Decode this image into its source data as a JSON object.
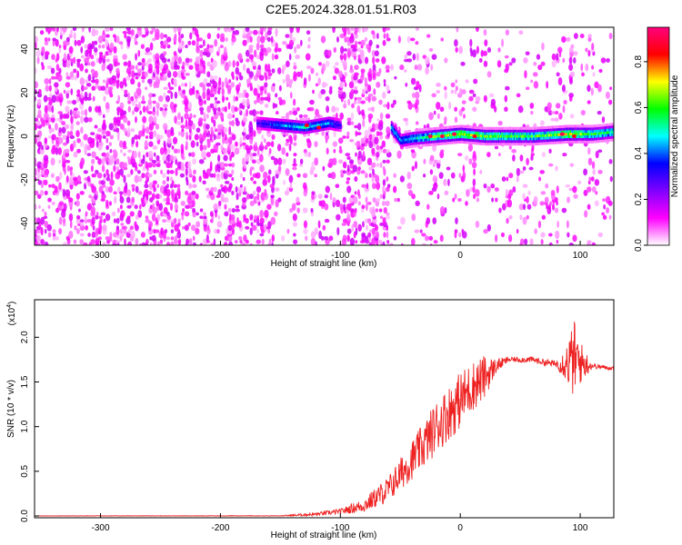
{
  "title": "C2E5.2024.328.01.51.R03",
  "chart_data": [
    {
      "type": "heatmap",
      "xlabel": "Height of straight line (km)",
      "ylabel": "Frequency (Hz)",
      "xlim": [
        -355,
        128
      ],
      "ylim": [
        -50,
        50
      ],
      "x_ticks": [
        -300,
        -200,
        -100,
        0,
        100
      ],
      "y_ticks": [
        -40,
        -20,
        0,
        20,
        40
      ],
      "colorbar": {
        "label": "Normalized spectral amplitude",
        "range": [
          0,
          0.95
        ],
        "ticks": [
          0.0,
          0.2,
          0.4,
          0.6,
          0.8
        ],
        "colormap": [
          "#ffffff",
          "#ff00ff",
          "#7f00ff",
          "#0000ff",
          "#00ffff",
          "#00ff00",
          "#ffff00",
          "#ff0000",
          "#ff007f"
        ]
      },
      "regions": [
        {
          "x": [
            -355,
            -155
          ],
          "y": [
            -50,
            50
          ],
          "kind": "noise",
          "level": 0.12
        },
        {
          "x": [
            -155,
            -100
          ],
          "y": [
            -50,
            50
          ],
          "kind": "noise",
          "level": 0.06
        },
        {
          "x": [
            -100,
            -58
          ],
          "y": [
            -50,
            50
          ],
          "kind": "noise",
          "level": 0.12
        },
        {
          "x": [
            -58,
            128
          ],
          "y": [
            -50,
            50
          ],
          "kind": "noise",
          "level": 0.04
        }
      ],
      "ridge": [
        {
          "x": -170,
          "f": 6,
          "amp": 0.3
        },
        {
          "x": -150,
          "f": 5,
          "amp": 0.45
        },
        {
          "x": -130,
          "f": 4,
          "amp": 0.5
        },
        {
          "x": -110,
          "f": 6,
          "amp": 0.45
        },
        {
          "x": -100,
          "f": 5,
          "amp": 0.3
        },
        {
          "x": -58,
          "f": 4,
          "amp": 0.5
        },
        {
          "x": -50,
          "f": -2,
          "amp": 0.45
        },
        {
          "x": -40,
          "f": -1,
          "amp": 0.5
        },
        {
          "x": -20,
          "f": 0,
          "amp": 0.65
        },
        {
          "x": 0,
          "f": 1,
          "amp": 0.7
        },
        {
          "x": 20,
          "f": 0,
          "amp": 0.65
        },
        {
          "x": 60,
          "f": 0,
          "amp": 0.6
        },
        {
          "x": 90,
          "f": 1,
          "amp": 0.7
        },
        {
          "x": 110,
          "f": 1,
          "amp": 0.6
        },
        {
          "x": 128,
          "f": 2,
          "amp": 0.55
        }
      ],
      "hot_spots": [
        {
          "x": -128,
          "f": 5,
          "amp": 0.85
        },
        {
          "x": -118,
          "f": 4,
          "amp": 0.85
        },
        {
          "x": -25,
          "f": 0,
          "amp": 0.9
        },
        {
          "x": -15,
          "f": 0,
          "amp": 0.9
        },
        {
          "x": -5,
          "f": 1,
          "amp": 0.9
        },
        {
          "x": 12,
          "f": 0,
          "amp": 0.85
        },
        {
          "x": 85,
          "f": 1,
          "amp": 0.9
        },
        {
          "x": 95,
          "f": 0,
          "amp": 0.85
        }
      ]
    },
    {
      "type": "line",
      "xlabel": "Height of straight line (km)",
      "ylabel": "SNR (10 * v/v)",
      "multiplier_label": "(x10",
      "multiplier_exp": "4",
      "xlim": [
        -355,
        128
      ],
      "ylim": [
        -0.02,
        2.42
      ],
      "x_ticks": [
        -300,
        -200,
        -100,
        0,
        100
      ],
      "y_ticks": [
        0.0,
        0.5,
        1.0,
        1.5,
        2.0
      ],
      "series": [
        {
          "color": "#ee2222",
          "trend": {
            "x": [
              -355,
              -150,
              -120,
              -100,
              -80,
              -60,
              -45,
              -30,
              -20,
              -10,
              0,
              10,
              20,
              30,
              40,
              50,
              60,
              70,
              80,
              90,
              95,
              100,
              110,
              128
            ],
            "y": [
              0.0,
              0.0,
              0.02,
              0.05,
              0.12,
              0.3,
              0.55,
              0.8,
              1.0,
              1.15,
              1.3,
              1.45,
              1.55,
              1.68,
              1.75,
              1.75,
              1.75,
              1.72,
              1.7,
              1.72,
              1.75,
              1.72,
              1.68,
              1.65
            ]
          },
          "noise_amp": {
            "x": [
              -355,
              -150,
              -100,
              -80,
              -60,
              -40,
              -20,
              0,
              20,
              30,
              40,
              80,
              88,
              95,
              100,
              110,
              128
            ],
            "y": [
              0.003,
              0.005,
              0.03,
              0.08,
              0.15,
              0.22,
              0.3,
              0.32,
              0.25,
              0.08,
              0.03,
              0.04,
              0.2,
              0.45,
              0.25,
              0.03,
              0.02
            ]
          }
        }
      ]
    }
  ]
}
